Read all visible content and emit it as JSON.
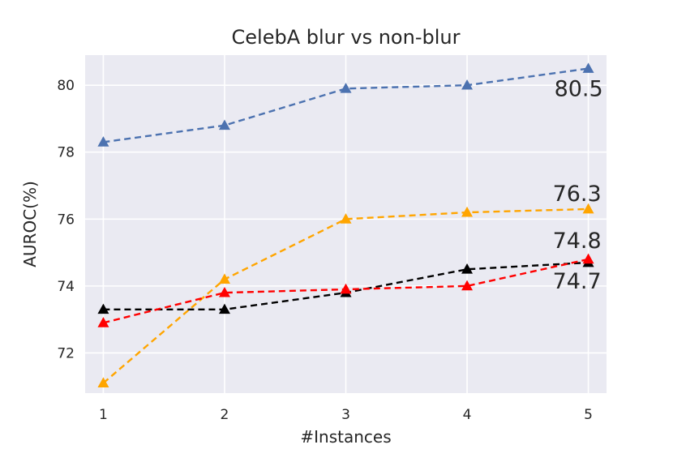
{
  "chart_data": {
    "type": "line",
    "title": "CelebA blur vs non-blur",
    "xlabel": "#Instances",
    "ylabel": "AUROC(%)",
    "x": [
      1,
      2,
      3,
      4,
      5
    ],
    "xticks": [
      "1",
      "2",
      "3",
      "4",
      "5"
    ],
    "yticks": [
      "72",
      "74",
      "76",
      "78",
      "80"
    ],
    "xlim": [
      0.85,
      5.15
    ],
    "ylim": [
      70.8,
      80.9
    ],
    "grid": true,
    "background": "#eaeaf2",
    "series": [
      {
        "color": "#4c72b0",
        "values": [
          78.3,
          78.8,
          79.9,
          80.0,
          80.5
        ],
        "end_label": "80.5"
      },
      {
        "color": "#ffa500",
        "values": [
          71.1,
          74.2,
          76.0,
          76.2,
          76.3
        ],
        "end_label": "76.3"
      },
      {
        "color": "#000000",
        "values": [
          73.3,
          73.3,
          73.8,
          74.5,
          74.7
        ],
        "end_label": "74.7"
      },
      {
        "color": "#ff0000",
        "values": [
          72.9,
          73.8,
          73.9,
          74.0,
          74.8
        ],
        "end_label": "74.8"
      }
    ]
  }
}
